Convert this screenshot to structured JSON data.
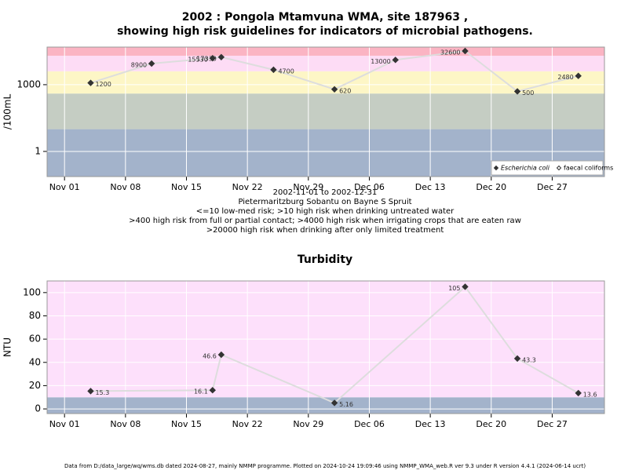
{
  "chart_data": [
    {
      "type": "line",
      "title": "2002 : Pongola Mtamvuna WMA, site 187963 ,",
      "subtitle": "showing high risk guidelines for indicators of microbial pathogens.",
      "ylabel": "/100mL",
      "log_y": true,
      "ylim": [
        0.074,
        49000
      ],
      "yticks": [
        1,
        1000
      ],
      "xlim": [
        "2002-10-30",
        "2003-01-02"
      ],
      "xticks": [
        {
          "value": "2002-11-01",
          "label": "Nov 01"
        },
        {
          "value": "2002-11-08",
          "label": "Nov 08"
        },
        {
          "value": "2002-11-15",
          "label": "Nov 15"
        },
        {
          "value": "2002-11-22",
          "label": "Nov 22"
        },
        {
          "value": "2002-11-29",
          "label": "Nov 29"
        },
        {
          "value": "2002-12-06",
          "label": "Dec 06"
        },
        {
          "value": "2002-12-13",
          "label": "Dec 13"
        },
        {
          "value": "2002-12-20",
          "label": "Dec 20"
        },
        {
          "value": "2002-12-27",
          "label": "Dec 27"
        }
      ],
      "x": [
        "2002-11-04",
        "2002-11-11",
        "2002-11-18",
        "2002-11-19",
        "2002-11-25",
        "2002-12-02",
        "2002-12-09",
        "2002-12-17",
        "2002-12-23",
        "2002-12-30"
      ],
      "series": [
        {
          "name": "Escherichia coli",
          "color": "#333333",
          "values": [
            1200,
            8900,
            15530,
            17330,
            4700,
            620,
            13000,
            32600,
            500,
            2480
          ]
        },
        {
          "name": "faecal coliforms",
          "color": "#ffffff",
          "values": [
            null,
            null,
            null,
            null,
            null,
            null,
            null,
            null,
            null,
            null
          ]
        }
      ],
      "band_breaks": [
        10,
        400,
        4000,
        20000
      ],
      "band_colors": [
        "#a3b3cb",
        "#c5cdc3",
        "#fdf6c6",
        "#fddcf5",
        "#fbb4c3"
      ],
      "grid": true,
      "legend": "bottom-right",
      "notes": [
        "2002-11-01 to 2002-12-31",
        "Pietermaritzburg Sobantu on Bayne S Spruit",
        "<=10 low-med risk; >10 high risk when drinking untreated water",
        ">400 high risk from full or partial contact; >4000 high risk when irrigating crops that are eaten raw",
        ">20000 high risk when drinking after only limited treatment"
      ]
    },
    {
      "type": "line",
      "title": "Turbidity",
      "ylabel": "NTU",
      "log_y": false,
      "ylim": [
        -4,
        110
      ],
      "yticks": [
        0,
        20,
        40,
        60,
        80,
        100
      ],
      "xlim": [
        "2002-10-30",
        "2003-01-02"
      ],
      "xticks": [
        {
          "value": "2002-11-01",
          "label": "Nov 01"
        },
        {
          "value": "2002-11-08",
          "label": "Nov 08"
        },
        {
          "value": "2002-11-15",
          "label": "Nov 15"
        },
        {
          "value": "2002-11-22",
          "label": "Nov 22"
        },
        {
          "value": "2002-11-29",
          "label": "Nov 29"
        },
        {
          "value": "2002-12-06",
          "label": "Dec 06"
        },
        {
          "value": "2002-12-13",
          "label": "Dec 13"
        },
        {
          "value": "2002-12-20",
          "label": "Dec 20"
        },
        {
          "value": "2002-12-27",
          "label": "Dec 27"
        }
      ],
      "x": [
        "2002-11-04",
        "2002-11-18",
        "2002-11-19",
        "2002-12-02",
        "2002-12-17",
        "2002-12-23",
        "2002-12-30"
      ],
      "series": [
        {
          "name": "Turbidity",
          "color": "#333333",
          "values": [
            15.3,
            16.1,
            46.6,
            5.16,
            105,
            43.3,
            13.6
          ]
        }
      ],
      "band_breaks": [
        10
      ],
      "band_colors": [
        "#a3b3cb",
        "#fde0fb"
      ],
      "grid": true
    }
  ],
  "footer": "Data from D:/data_large/wq/wms.db dated 2024-08-27, mainly NMMP programme. Plotted on 2024-10-24 19:09:46 using NMMP_WMA_web.R ver 9.3 under R version 4.4.1 (2024-06-14 ucrt)"
}
